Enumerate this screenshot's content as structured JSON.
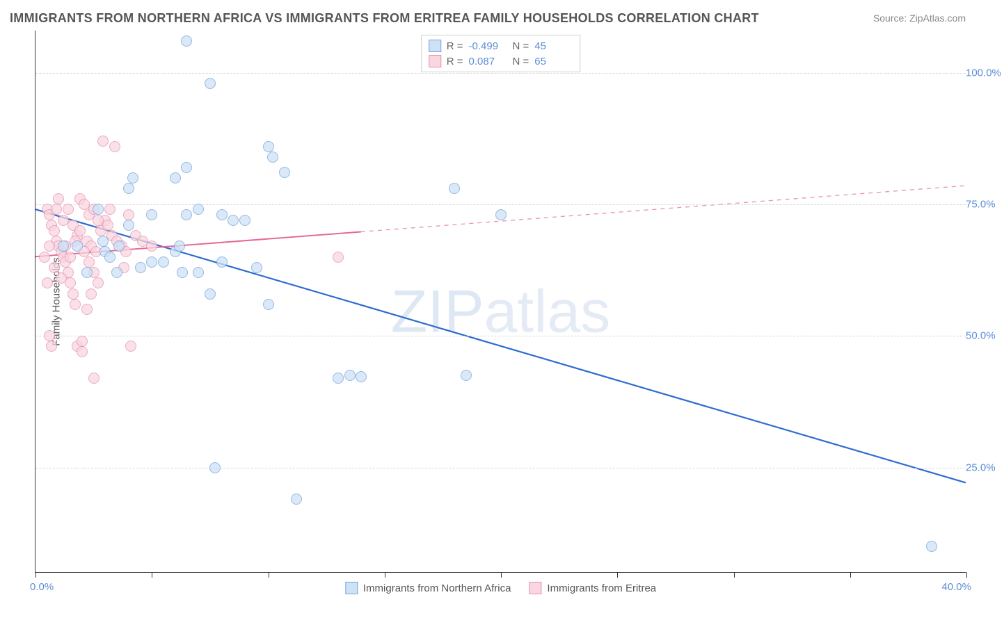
{
  "title": "IMMIGRANTS FROM NORTHERN AFRICA VS IMMIGRANTS FROM ERITREA FAMILY HOUSEHOLDS CORRELATION CHART",
  "source_prefix": "Source: ",
  "source_name": "ZipAtlas.com",
  "watermark_zip": "ZIP",
  "watermark_atlas": "atlas",
  "chart": {
    "type": "scatter",
    "plot_bg": "#ffffff",
    "grid_color": "#d8d8d8",
    "axis_color": "#333333",
    "tick_label_color": "#5b8dd6",
    "ylabel": "Family Households",
    "xlim": [
      0,
      40
    ],
    "ylim": [
      5,
      108
    ],
    "xtick_positions": [
      0,
      5,
      10,
      15,
      20,
      25,
      30,
      35,
      40
    ],
    "xtick_labels_shown": {
      "left": "0.0%",
      "right": "40.0%"
    },
    "ytick_positions": [
      25,
      50,
      75,
      100
    ],
    "ytick_labels": [
      "25.0%",
      "50.0%",
      "75.0%",
      "100.0%"
    ],
    "series": [
      {
        "name": "Immigrants from Northern Africa",
        "marker_fill": "#cfe1f5",
        "marker_stroke": "#6fa3dd",
        "marker_size": 16,
        "line_color": "#2e6bd0",
        "line_width": 2.2,
        "R": "-0.499",
        "N": "45",
        "trend": {
          "x1": 0,
          "y1": 74,
          "x2": 40,
          "y2": 22,
          "solid_until_x": 40
        },
        "points": [
          [
            6.5,
            106
          ],
          [
            7.5,
            98
          ],
          [
            10,
            86
          ],
          [
            10.2,
            84
          ],
          [
            4,
            78
          ],
          [
            6,
            80
          ],
          [
            7,
            74
          ],
          [
            6.5,
            73
          ],
          [
            6.5,
            82
          ],
          [
            5,
            73
          ],
          [
            8,
            73
          ],
          [
            8.5,
            72
          ],
          [
            9,
            72
          ],
          [
            3.5,
            62
          ],
          [
            4.5,
            63
          ],
          [
            5,
            64
          ],
          [
            5.5,
            64
          ],
          [
            6,
            66
          ],
          [
            6.3,
            62
          ],
          [
            7,
            62
          ],
          [
            8,
            64
          ],
          [
            7.5,
            58
          ],
          [
            9.5,
            63
          ],
          [
            10,
            56
          ],
          [
            13,
            42
          ],
          [
            13.5,
            42.5
          ],
          [
            14,
            42.3
          ],
          [
            18.5,
            42.5
          ],
          [
            18,
            78
          ],
          [
            7.7,
            25
          ],
          [
            11.2,
            19
          ],
          [
            10.7,
            81
          ],
          [
            1.2,
            67
          ],
          [
            1.8,
            67
          ],
          [
            2.2,
            62
          ],
          [
            3,
            66
          ],
          [
            4,
            71
          ],
          [
            4.2,
            80
          ],
          [
            20,
            73
          ],
          [
            2.7,
            74
          ],
          [
            2.9,
            68
          ],
          [
            3.2,
            65
          ],
          [
            3.6,
            67
          ],
          [
            38.5,
            10
          ],
          [
            6.2,
            67
          ]
        ]
      },
      {
        "name": "Immigrants from Eritrea",
        "marker_fill": "#f9d6e0",
        "marker_stroke": "#e68fb0",
        "marker_size": 16,
        "line_color": "#e56a9a",
        "line_width": 2,
        "R": "0.087",
        "N": "65",
        "trend": {
          "x1": 0,
          "y1": 65,
          "x2": 40,
          "y2": 78.5,
          "solid_until_x": 14
        },
        "points": [
          [
            0.5,
            74
          ],
          [
            0.6,
            73
          ],
          [
            0.7,
            71
          ],
          [
            0.8,
            70
          ],
          [
            0.9,
            68
          ],
          [
            1.0,
            67
          ],
          [
            1.1,
            66
          ],
          [
            1.2,
            65
          ],
          [
            1.3,
            64
          ],
          [
            1.4,
            62
          ],
          [
            1.5,
            60
          ],
          [
            1.6,
            58
          ],
          [
            1.7,
            56
          ],
          [
            0.6,
            50
          ],
          [
            0.7,
            48
          ],
          [
            2.5,
            42
          ],
          [
            1.8,
            48
          ],
          [
            2.0,
            49
          ],
          [
            2.2,
            68
          ],
          [
            2.4,
            67
          ],
          [
            2.6,
            66
          ],
          [
            2.8,
            70
          ],
          [
            3.0,
            72
          ],
          [
            3.2,
            74
          ],
          [
            3.4,
            86
          ],
          [
            2.9,
            87
          ],
          [
            1.9,
            76
          ],
          [
            2.1,
            75
          ],
          [
            2.3,
            73
          ],
          [
            2.5,
            74
          ],
          [
            2.7,
            72
          ],
          [
            3.1,
            71
          ],
          [
            3.3,
            69
          ],
          [
            3.5,
            68
          ],
          [
            3.7,
            67
          ],
          [
            3.9,
            66
          ],
          [
            4.1,
            48
          ],
          [
            0.5,
            60
          ],
          [
            0.9,
            74
          ],
          [
            1.0,
            76
          ],
          [
            1.2,
            72
          ],
          [
            1.4,
            74
          ],
          [
            1.6,
            71
          ],
          [
            1.8,
            69
          ],
          [
            2.0,
            47
          ],
          [
            2.2,
            55
          ],
          [
            2.4,
            58
          ],
          [
            0.4,
            65
          ],
          [
            0.6,
            67
          ],
          [
            0.8,
            63
          ],
          [
            1.1,
            61
          ],
          [
            1.3,
            67
          ],
          [
            1.5,
            65
          ],
          [
            1.7,
            68
          ],
          [
            1.9,
            70
          ],
          [
            2.1,
            66
          ],
          [
            2.3,
            64
          ],
          [
            2.5,
            62
          ],
          [
            2.7,
            60
          ],
          [
            4.0,
            73
          ],
          [
            4.3,
            69
          ],
          [
            4.6,
            68
          ],
          [
            5,
            67
          ],
          [
            13,
            65
          ],
          [
            3.8,
            63
          ]
        ]
      }
    ],
    "legend_top": {
      "R_label": "R =",
      "N_label": "N ="
    }
  }
}
